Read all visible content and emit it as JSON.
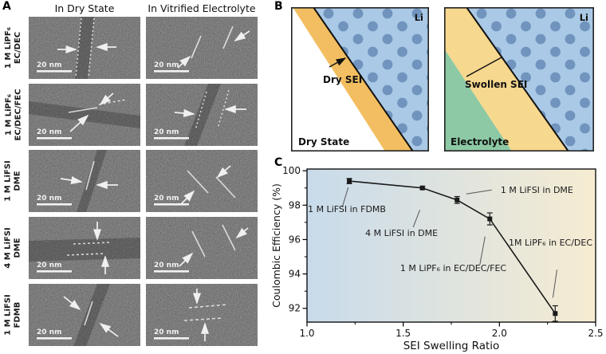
{
  "panel_a": {
    "label": "A",
    "columns": [
      "In Dry State",
      "In Vitrified Electrolyte"
    ],
    "rows": [
      {
        "electrolyte_line1": "1 M LiPF₆",
        "electrolyte_line2": "EC/DEC",
        "scale_bar": "20 nm"
      },
      {
        "electrolyte_line1": "1 M LiPF₆",
        "electrolyte_line2": "EC/DEC/FEC",
        "scale_bar": "20 nm"
      },
      {
        "electrolyte_line1": "1 M LiFSI",
        "electrolyte_line2": "DME",
        "scale_bar": "20 nm"
      },
      {
        "electrolyte_line1": "4 M LiFSI",
        "electrolyte_line2": "DME",
        "scale_bar": "20 nm"
      },
      {
        "electrolyte_line1": "1 M LiFSI",
        "electrolyte_line2": "FDMB",
        "scale_bar": "20 nm"
      }
    ]
  },
  "panel_b": {
    "label": "B",
    "left": {
      "metal_label": "Li",
      "sei_label": "Dry SEI",
      "state_label": "Dry State"
    },
    "right": {
      "metal_label": "Li",
      "sei_label": "Swollen SEI",
      "state_label": "Electrolyte"
    },
    "colors": {
      "lithium_bg": "#aac9e6",
      "lithium_dots": "#7094bd",
      "dry_sei": "#f2be61",
      "swollen_sei": "#f6d88e",
      "electrolyte": "#8cc9a4"
    }
  },
  "panel_c": {
    "label": "C"
  },
  "chart_data": {
    "type": "line",
    "title": "",
    "xlabel": "SEI Swelling Ratio",
    "ylabel": "Coulombic Efficiency (%)",
    "xlim": [
      1.0,
      2.5
    ],
    "ylim": [
      91.2,
      100.1
    ],
    "grid": false,
    "background_gradient": [
      "#c8dbeb",
      "#f6ecd2"
    ],
    "x_ticks": [
      {
        "v": 1.0,
        "label": "1.0"
      },
      {
        "v": 1.5,
        "label": "1.5"
      },
      {
        "v": 2.0,
        "label": "2.0"
      },
      {
        "v": 2.5,
        "label": "2.5"
      }
    ],
    "x_minor_ticks": [
      1.25,
      1.75,
      2.25
    ],
    "y_ticks": [
      {
        "v": 92,
        "label": "92"
      },
      {
        "v": 94,
        "label": "94"
      },
      {
        "v": 96,
        "label": "96"
      },
      {
        "v": 98,
        "label": "98"
      },
      {
        "v": 100,
        "label": "100"
      }
    ],
    "y_minor_ticks": [
      93,
      95,
      97,
      99
    ],
    "series": [
      {
        "name": "Coulombic efficiency vs SEI swelling ratio",
        "marker": "square",
        "color": "#1b1b1b",
        "points": [
          {
            "x": 1.22,
            "y": 99.4,
            "yerr": 0.15,
            "label": "1 M LiFSI in FDMB"
          },
          {
            "x": 1.6,
            "y": 99.0,
            "yerr": 0.07,
            "label": "4 M LiFSI in DME"
          },
          {
            "x": 1.78,
            "y": 98.3,
            "yerr": 0.2,
            "label": "1 M LiFSI in DME"
          },
          {
            "x": 1.95,
            "y": 97.2,
            "yerr": 0.35,
            "label": "1 M LiPF₆ in EC/DEC/FEC"
          },
          {
            "x": 2.29,
            "y": 91.7,
            "yerr": 0.45,
            "label": "1M LiPF₆ in EC/DEC"
          }
        ]
      }
    ],
    "annotations": [
      {
        "text": "1 M LiFSI in FDMB",
        "tx": 0.003,
        "ty": 0.281,
        "leader": [
          [
            0.143,
            0.12
          ],
          [
            0.122,
            0.25
          ]
        ]
      },
      {
        "text": "4 M LiFSI in DME",
        "tx": 0.202,
        "ty": 0.438,
        "leader": [
          [
            0.391,
            0.267
          ],
          [
            0.368,
            0.38
          ]
        ]
      },
      {
        "text": "1 M LiFSI in DME",
        "tx": 0.671,
        "ty": 0.156,
        "leader": [
          [
            0.64,
            0.137
          ],
          [
            0.552,
            0.163
          ]
        ]
      },
      {
        "text": "1 M LiPF₆ in EC/DEC/FEC",
        "tx": 0.323,
        "ty": 0.667,
        "leader": [
          [
            0.617,
            0.441
          ],
          [
            0.599,
            0.623
          ]
        ]
      },
      {
        "text": "1M LiPF₆ in EC/DEC",
        "tx": 0.699,
        "ty": 0.5,
        "leader": [
          [
            0.866,
            0.658
          ],
          [
            0.852,
            0.84
          ]
        ]
      }
    ]
  }
}
